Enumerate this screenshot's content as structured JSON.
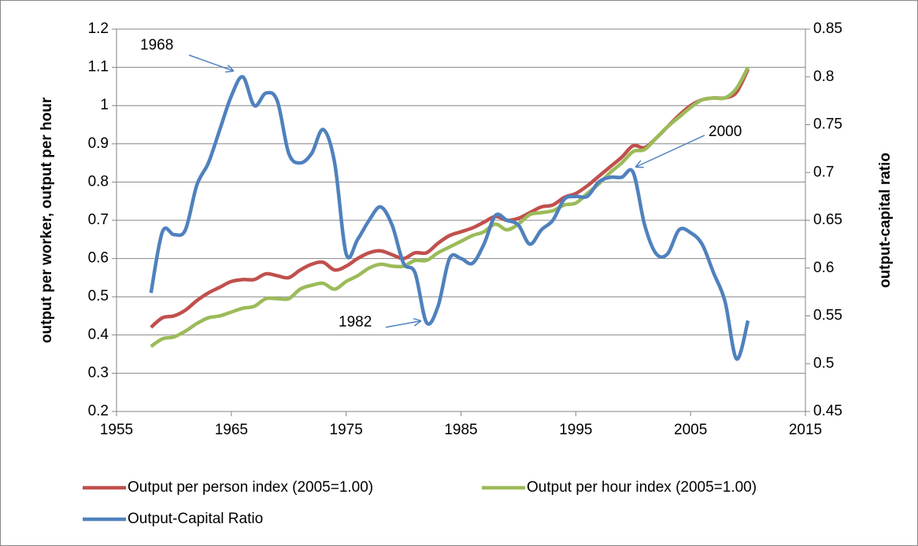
{
  "chart_data": {
    "type": "line",
    "y_label": "output per worker, output per hour",
    "y2_label": "output-capital ratio",
    "x": [
      1958,
      1959,
      1960,
      1961,
      1962,
      1963,
      1964,
      1965,
      1966,
      1967,
      1968,
      1969,
      1970,
      1971,
      1972,
      1973,
      1974,
      1975,
      1976,
      1977,
      1978,
      1979,
      1980,
      1981,
      1982,
      1983,
      1984,
      1985,
      1986,
      1987,
      1988,
      1989,
      1990,
      1991,
      1992,
      1993,
      1994,
      1995,
      1996,
      1997,
      1998,
      1999,
      2000,
      2001,
      2002,
      2003,
      2004,
      2005,
      2006,
      2007,
      2008,
      2009,
      2010
    ],
    "series": [
      {
        "name": "Output per person index (2005=1.00)",
        "color": "#c0504d",
        "axis": "y",
        "values": [
          0.42,
          0.445,
          0.45,
          0.465,
          0.49,
          0.51,
          0.525,
          0.54,
          0.545,
          0.545,
          0.56,
          0.555,
          0.55,
          0.57,
          0.585,
          0.59,
          0.57,
          0.58,
          0.6,
          0.615,
          0.62,
          0.61,
          0.6,
          0.615,
          0.615,
          0.64,
          0.66,
          0.67,
          0.68,
          0.695,
          0.71,
          0.7,
          0.705,
          0.72,
          0.735,
          0.74,
          0.76,
          0.77,
          0.79,
          0.815,
          0.84,
          0.865,
          0.895,
          0.89,
          0.915,
          0.945,
          0.975,
          1.0,
          1.015,
          1.02,
          1.02,
          1.035,
          1.095
        ]
      },
      {
        "name": "Output per hour index (2005=1.00)",
        "color": "#9bbb59",
        "axis": "y",
        "values": [
          0.37,
          0.39,
          0.395,
          0.41,
          0.43,
          0.445,
          0.45,
          0.46,
          0.47,
          0.475,
          0.495,
          0.495,
          0.495,
          0.52,
          0.53,
          0.535,
          0.52,
          0.54,
          0.555,
          0.575,
          0.585,
          0.58,
          0.58,
          0.595,
          0.595,
          0.615,
          0.63,
          0.645,
          0.66,
          0.67,
          0.69,
          0.675,
          0.69,
          0.715,
          0.72,
          0.725,
          0.74,
          0.745,
          0.77,
          0.795,
          0.825,
          0.85,
          0.88,
          0.885,
          0.915,
          0.945,
          0.97,
          0.995,
          1.015,
          1.02,
          1.02,
          1.045,
          1.1
        ]
      },
      {
        "name": "Output-Capital Ratio",
        "color": "#4f81bd",
        "axis": "y2",
        "values": [
          0.574,
          0.638,
          0.635,
          0.64,
          0.687,
          0.71,
          0.745,
          0.78,
          0.8,
          0.77,
          0.783,
          0.775,
          0.72,
          0.71,
          0.72,
          0.745,
          0.71,
          0.615,
          0.63,
          0.65,
          0.664,
          0.645,
          0.605,
          0.595,
          0.543,
          0.56,
          0.61,
          0.61,
          0.605,
          0.625,
          0.655,
          0.65,
          0.645,
          0.625,
          0.64,
          0.65,
          0.672,
          0.675,
          0.675,
          0.69,
          0.695,
          0.695,
          0.7,
          0.645,
          0.615,
          0.615,
          0.64,
          0.637,
          0.625,
          0.595,
          0.565,
          0.505,
          0.545
        ]
      }
    ],
    "xlim": [
      1955,
      2015
    ],
    "xticks": [
      1955,
      1965,
      1975,
      1985,
      1995,
      2005,
      2015
    ],
    "ylim": [
      0.2,
      1.2
    ],
    "yticks": [
      0.2,
      0.3,
      0.4,
      0.5,
      0.6,
      0.7,
      0.8,
      0.9,
      1,
      1.1,
      1.2
    ],
    "y2lim": [
      0.45,
      0.85
    ],
    "y2ticks": [
      0.45,
      0.5,
      0.55,
      0.6,
      0.65,
      0.7,
      0.75,
      0.8,
      0.85
    ],
    "grid": true,
    "annotations": [
      {
        "text": "1968"
      },
      {
        "text": "2000"
      },
      {
        "text": "1982"
      }
    ]
  }
}
